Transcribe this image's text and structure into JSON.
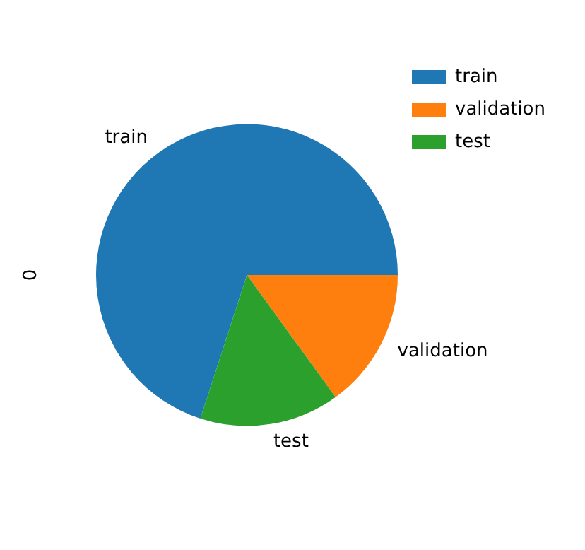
{
  "chart_data": {
    "type": "pie",
    "ylabel": "0",
    "categories": [
      "train",
      "validation",
      "test"
    ],
    "values": [
      70,
      15,
      15
    ],
    "colors": [
      "#1f77b4",
      "#ff7f0e",
      "#2ca02c"
    ],
    "legend": "top right"
  }
}
